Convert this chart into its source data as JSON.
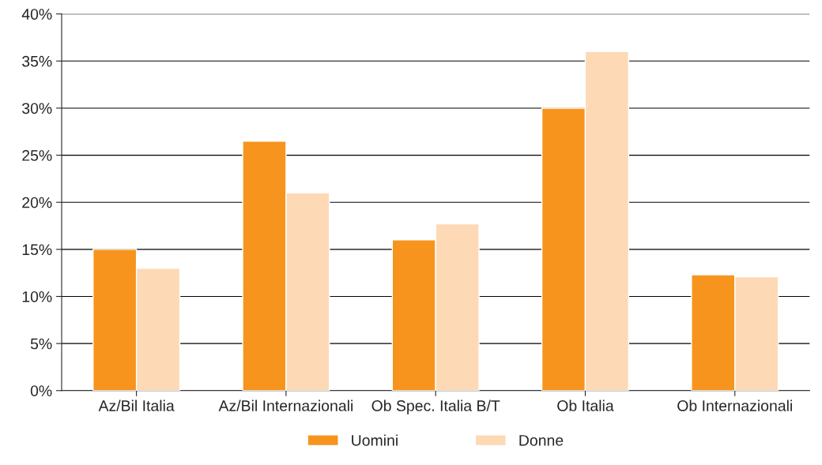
{
  "chart_data": {
    "type": "bar",
    "categories": [
      "Az/Bil Italia",
      "Az/Bil Internazionali",
      "Ob Spec. Italia B/T",
      "Ob Italia",
      "Ob Internazionali"
    ],
    "series": [
      {
        "name": "Uomini",
        "color": "#f7941d",
        "values": [
          15,
          26.5,
          16,
          30,
          12.3
        ]
      },
      {
        "name": "Donne",
        "color": "#fdd9b5",
        "values": [
          13,
          21,
          17.7,
          36,
          12.1
        ]
      }
    ],
    "ylim": [
      0,
      40
    ],
    "yticks": [
      {
        "value": 0,
        "label": "0%"
      },
      {
        "value": 5,
        "label": "5%"
      },
      {
        "value": 10,
        "label": "10%"
      },
      {
        "value": 15,
        "label": "15%"
      },
      {
        "value": 20,
        "label": "20%"
      },
      {
        "value": 25,
        "label": "25%"
      },
      {
        "value": 30,
        "label": "30%"
      },
      {
        "value": 35,
        "label": "35%"
      },
      {
        "value": 40,
        "label": "40%"
      }
    ],
    "grid": "y",
    "legend": "bottom"
  }
}
